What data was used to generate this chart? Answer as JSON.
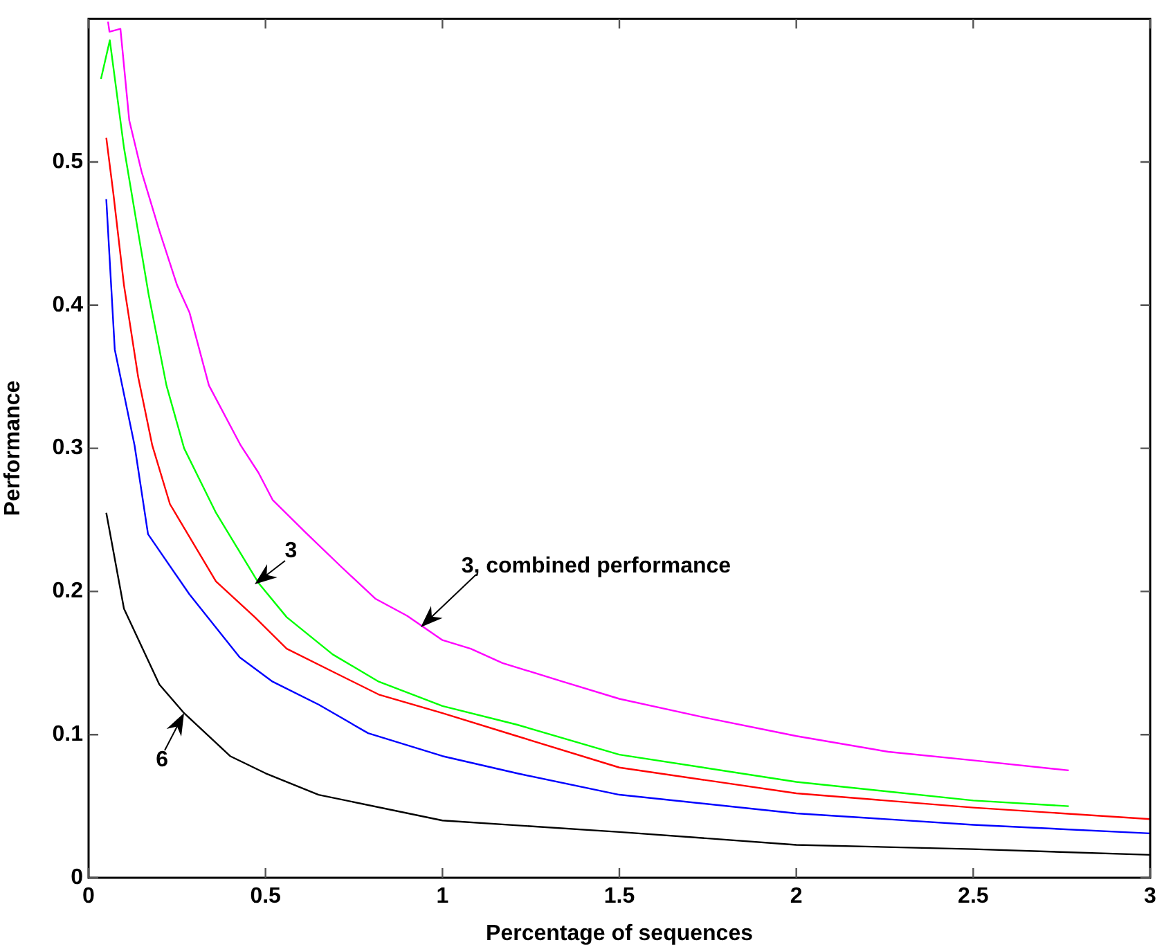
{
  "chart_data": {
    "type": "line",
    "xlabel": "Percentage of sequences",
    "ylabel": "Performance",
    "xlim": [
      0,
      3
    ],
    "ylim": [
      0,
      0.6
    ],
    "xticks": [
      0,
      0.5,
      1,
      1.5,
      2,
      2.5,
      3
    ],
    "yticks": [
      0,
      0.1,
      0.2,
      0.3,
      0.4,
      0.5
    ],
    "grid": false,
    "legend": false,
    "marker": "none",
    "line_style": "solid",
    "series": [
      {
        "color": "#ff00ff",
        "x": [
          0.055,
          0.059,
          0.09,
          0.115,
          0.15,
          0.2,
          0.25,
          0.285,
          0.34,
          0.43,
          0.48,
          0.52,
          0.61,
          0.715,
          0.81,
          0.9,
          1.0,
          1.08,
          1.17,
          1.34,
          1.5,
          1.74,
          2.0,
          2.26,
          2.5,
          2.77
        ],
        "values": [
          0.598,
          0.591,
          0.593,
          0.529,
          0.493,
          0.452,
          0.414,
          0.395,
          0.344,
          0.302,
          0.283,
          0.264,
          0.242,
          0.217,
          0.195,
          0.183,
          0.166,
          0.16,
          0.15,
          0.137,
          0.125,
          0.112,
          0.099,
          0.088,
          0.082,
          0.075
        ]
      },
      {
        "color": "#00ff00",
        "x": [
          0.035,
          0.06,
          0.1,
          0.17,
          0.22,
          0.27,
          0.36,
          0.48,
          0.56,
          0.69,
          0.82,
          1.0,
          1.21,
          1.5,
          2.0,
          2.5,
          2.77
        ],
        "values": [
          0.558,
          0.585,
          0.51,
          0.407,
          0.344,
          0.3,
          0.255,
          0.206,
          0.182,
          0.156,
          0.137,
          0.12,
          0.107,
          0.086,
          0.067,
          0.054,
          0.05
        ]
      },
      {
        "color": "#ff0000",
        "x": [
          0.05,
          0.07,
          0.1,
          0.14,
          0.18,
          0.23,
          0.36,
          0.47,
          0.56,
          0.69,
          0.82,
          1.0,
          1.21,
          1.5,
          2.0,
          2.5,
          3.0
        ],
        "values": [
          0.517,
          0.478,
          0.414,
          0.35,
          0.302,
          0.261,
          0.207,
          0.182,
          0.16,
          0.144,
          0.128,
          0.115,
          0.099,
          0.077,
          0.059,
          0.049,
          0.041
        ]
      },
      {
        "color": "#0000ff",
        "x": [
          0.05,
          0.074,
          0.13,
          0.168,
          0.285,
          0.427,
          0.52,
          0.65,
          0.79,
          1.0,
          1.21,
          1.5,
          2.0,
          2.5,
          3.0
        ],
        "values": [
          0.474,
          0.369,
          0.302,
          0.24,
          0.198,
          0.154,
          0.137,
          0.121,
          0.101,
          0.085,
          0.073,
          0.058,
          0.045,
          0.037,
          0.031
        ]
      },
      {
        "color": "#000000",
        "x": [
          0.05,
          0.1,
          0.2,
          0.27,
          0.4,
          0.5,
          0.65,
          1.0,
          1.5,
          2.0,
          2.5,
          3.0
        ],
        "values": [
          0.255,
          0.188,
          0.135,
          0.115,
          0.085,
          0.073,
          0.058,
          0.04,
          0.032,
          0.023,
          0.02,
          0.016
        ]
      }
    ],
    "annotations": [
      {
        "text": "3",
        "x": 0.47,
        "y": 0.205
      },
      {
        "text": "3, combined performance",
        "x": 0.94,
        "y": 0.175
      },
      {
        "text": "6",
        "x": 0.27,
        "y": 0.115
      }
    ]
  }
}
